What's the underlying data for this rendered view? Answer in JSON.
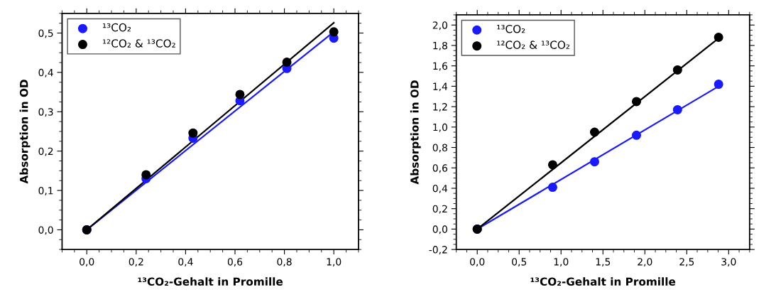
{
  "chart_data": [
    {
      "type": "scatter",
      "xlabel": "¹³CO₂-Gehalt in Promille",
      "ylabel": "Absorption in OD",
      "xlim": [
        -0.1,
        1.1
      ],
      "ylim": [
        -0.05,
        0.55
      ],
      "xticks": [
        {
          "value": 0,
          "label": "0,0"
        },
        {
          "value": 0.2,
          "label": "0,2"
        },
        {
          "value": 0.4,
          "label": "0,4"
        },
        {
          "value": 0.6,
          "label": "0,6"
        },
        {
          "value": 0.8,
          "label": "0,8"
        },
        {
          "value": 1.0,
          "label": "1,0"
        }
      ],
      "yticks": [
        {
          "value": 0,
          "label": "0,0"
        },
        {
          "value": 0.1,
          "label": "0,1"
        },
        {
          "value": 0.2,
          "label": "0,2"
        },
        {
          "value": 0.3,
          "label": "0,3"
        },
        {
          "value": 0.4,
          "label": "0,4"
        },
        {
          "value": 0.5,
          "label": "0,5"
        }
      ],
      "legend": "top left",
      "grid": false,
      "series": [
        {
          "type": "line",
          "marker": "none",
          "color": "#1a1aff",
          "x": [
            0,
            1.0
          ],
          "values": [
            0,
            0.503
          ]
        },
        {
          "type": "line",
          "marker": "none",
          "color": "#000000",
          "x": [
            0,
            1.0
          ],
          "values": [
            0,
            0.526
          ]
        },
        {
          "name": "¹³CO₂",
          "marker": "circle",
          "color": "#1a1aff",
          "x": [
            0,
            0.24,
            0.43,
            0.62,
            0.81,
            1.0
          ],
          "values": [
            0,
            0.13,
            0.233,
            0.328,
            0.41,
            0.487
          ]
        },
        {
          "name": "¹²CO₂ & ¹³CO₂",
          "marker": "circle",
          "color": "#000000",
          "x": [
            0,
            0.24,
            0.43,
            0.62,
            0.81,
            1.0
          ],
          "values": [
            0,
            0.14,
            0.246,
            0.344,
            0.426,
            0.503
          ]
        }
      ]
    },
    {
      "type": "scatter",
      "xlabel": "¹³CO₂-Gehalt in Promille",
      "ylabel": "Absorption in OD",
      "xlim": [
        -0.25,
        3.25
      ],
      "ylim": [
        -0.2,
        2.1
      ],
      "xticks": [
        {
          "value": 0,
          "label": "0,0"
        },
        {
          "value": 0.5,
          "label": "0,5"
        },
        {
          "value": 1.0,
          "label": "1,0"
        },
        {
          "value": 1.5,
          "label": "1,5"
        },
        {
          "value": 2.0,
          "label": "2,0"
        },
        {
          "value": 2.5,
          "label": "2,5"
        },
        {
          "value": 3.0,
          "label": "3,0"
        }
      ],
      "yticks": [
        {
          "value": -0.2,
          "label": "-0,2"
        },
        {
          "value": 0,
          "label": "0,0"
        },
        {
          "value": 0.2,
          "label": "0,2"
        },
        {
          "value": 0.4,
          "label": "0,4"
        },
        {
          "value": 0.6,
          "label": "0,6"
        },
        {
          "value": 0.8,
          "label": "0,8"
        },
        {
          "value": 1.0,
          "label": "1,0"
        },
        {
          "value": 1.2,
          "label": "1,2"
        },
        {
          "value": 1.4,
          "label": "1,4"
        },
        {
          "value": 1.6,
          "label": "1,6"
        },
        {
          "value": 1.8,
          "label": "1,8"
        },
        {
          "value": 2.0,
          "label": "2,0"
        }
      ],
      "legend": "top left",
      "grid": false,
      "series": [
        {
          "type": "line",
          "marker": "none",
          "color": "#1a1aff",
          "x": [
            0,
            2.88
          ],
          "values": [
            0,
            1.4
          ]
        },
        {
          "type": "line",
          "marker": "none",
          "color": "#000000",
          "x": [
            0,
            2.88
          ],
          "values": [
            0,
            1.87
          ]
        },
        {
          "name": "¹³CO₂",
          "marker": "circle",
          "color": "#1a1aff",
          "x": [
            0,
            0.9,
            1.4,
            1.9,
            2.39,
            2.88
          ],
          "values": [
            0,
            0.41,
            0.66,
            0.92,
            1.17,
            1.42
          ]
        },
        {
          "name": "¹²CO₂ & ¹³CO₂",
          "marker": "circle",
          "color": "#000000",
          "x": [
            0,
            0.9,
            1.4,
            1.9,
            2.39,
            2.88
          ],
          "values": [
            0,
            0.63,
            0.95,
            1.25,
            1.56,
            1.88
          ]
        }
      ]
    }
  ]
}
